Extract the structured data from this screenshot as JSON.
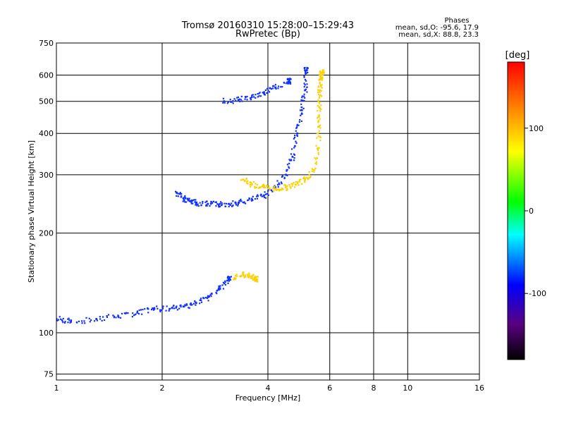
{
  "chart_data": {
    "type": "scatter",
    "title": "Tromsø 20160310 15:28:00–15:29:43",
    "subtitle": "RwPretec (Bp)",
    "xlabel": "Frequency [MHz]",
    "ylabel": "Stationary phase Virtual Height [km]",
    "x_scale": "log",
    "y_scale": "log",
    "xlim": [
      1,
      16
    ],
    "ylim": [
      72,
      750
    ],
    "x_ticks": [
      1,
      2,
      4,
      6,
      8,
      10,
      16
    ],
    "y_ticks": [
      75,
      100,
      200,
      300,
      400,
      500,
      600,
      750
    ],
    "grid": true,
    "stats": {
      "title": "Phases",
      "line_o": "mean, sd,O: -95.6, 17.9",
      "line_x": "mean, sd,X:  88.8, 23.3"
    },
    "colorbar": {
      "label": "[deg]",
      "range": [
        -180,
        180
      ],
      "ticks": [
        -100,
        0,
        100
      ],
      "colors": [
        "#000000",
        "#5a0080",
        "#0000ff",
        "#00ffff",
        "#00ff00",
        "#ffff00",
        "#ff8000",
        "#ff0000"
      ]
    },
    "series": [
      {
        "trace": "F-region O trace (main)",
        "phase_deg": -100,
        "x": [
          2.2,
          2.3,
          2.4,
          2.5,
          2.7,
          2.9,
          3.1,
          3.3,
          3.6,
          3.9,
          4.2,
          4.5,
          4.7,
          4.85,
          5.0,
          5.1,
          5.15
        ],
        "y": [
          265,
          255,
          250,
          247,
          245,
          244,
          245,
          247,
          252,
          260,
          275,
          300,
          340,
          400,
          470,
          540,
          620
        ]
      },
      {
        "trace": "F-region X trace",
        "phase_deg": 90,
        "x": [
          3.4,
          3.6,
          3.9,
          4.2,
          4.5,
          4.8,
          5.1,
          5.4,
          5.55,
          5.6,
          5.6,
          5.62,
          5.65,
          5.7
        ],
        "y": [
          290,
          280,
          275,
          272,
          275,
          280,
          290,
          310,
          360,
          420,
          480,
          540,
          590,
          610
        ]
      },
      {
        "trace": "Upper oblique trace",
        "phase_deg": -100,
        "x": [
          3.0,
          3.3,
          3.6,
          3.9,
          4.2,
          4.6
        ],
        "y": [
          500,
          505,
          515,
          530,
          550,
          575
        ]
      },
      {
        "trace": "E / lower O trace",
        "phase_deg": -100,
        "x": [
          1.0,
          1.1,
          1.3,
          1.5,
          1.7,
          1.9,
          2.1,
          2.3,
          2.5,
          2.7,
          2.9,
          3.1
        ],
        "y": [
          110,
          108,
          110,
          112,
          115,
          118,
          118,
          120,
          123,
          128,
          135,
          145
        ]
      },
      {
        "trace": "Lower X patch",
        "phase_deg": 100,
        "x": [
          3.2,
          3.4,
          3.6,
          3.7
        ],
        "y": [
          145,
          150,
          148,
          145
        ]
      }
    ]
  }
}
